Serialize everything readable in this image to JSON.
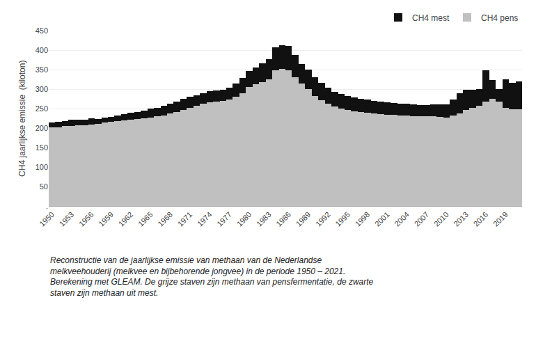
{
  "chart_data": {
    "type": "bar",
    "stacked": true,
    "x": [
      1950,
      1951,
      1952,
      1953,
      1954,
      1955,
      1956,
      1957,
      1958,
      1959,
      1960,
      1961,
      1962,
      1963,
      1964,
      1965,
      1966,
      1967,
      1968,
      1969,
      1970,
      1971,
      1972,
      1973,
      1974,
      1975,
      1976,
      1977,
      1978,
      1979,
      1980,
      1981,
      1982,
      1983,
      1984,
      1985,
      1986,
      1987,
      1988,
      1989,
      1990,
      1991,
      1992,
      1993,
      1994,
      1995,
      1996,
      1997,
      1998,
      1999,
      2000,
      2001,
      2002,
      2003,
      2004,
      2005,
      2006,
      2007,
      2008,
      2009,
      2010,
      2011,
      2012,
      2013,
      2014,
      2015,
      2016,
      2017,
      2018,
      2019,
      2020,
      2021
    ],
    "series": [
      {
        "name": "CH4 pens",
        "color": "#c0c0c0",
        "values": [
          203,
          203,
          205,
          206,
          207,
          208,
          210,
          212,
          214,
          216,
          218,
          220,
          222,
          223,
          225,
          228,
          230,
          233,
          237,
          242,
          247,
          252,
          257,
          262,
          267,
          268,
          270,
          274,
          280,
          290,
          305,
          312,
          318,
          325,
          348,
          352,
          348,
          330,
          315,
          300,
          283,
          272,
          262,
          255,
          250,
          246,
          243,
          241,
          240,
          238,
          236,
          235,
          234,
          233,
          232,
          231,
          230,
          230,
          230,
          229,
          228,
          233,
          238,
          246,
          253,
          258,
          268,
          276,
          268,
          253,
          248,
          248
        ]
      },
      {
        "name": "CH4 mest",
        "color": "#111111",
        "values": [
          12,
          14,
          14,
          16,
          15,
          14,
          16,
          12,
          14,
          13,
          14,
          16,
          17,
          18,
          20,
          22,
          23,
          25,
          26,
          27,
          28,
          28,
          28,
          28,
          28,
          28,
          28,
          30,
          35,
          38,
          42,
          44,
          48,
          52,
          60,
          60,
          62,
          58,
          50,
          50,
          47,
          45,
          42,
          38,
          37,
          36,
          35,
          34,
          33,
          32,
          32,
          31,
          31,
          30,
          30,
          30,
          30,
          30,
          31,
          32,
          33,
          40,
          52,
          52,
          45,
          42,
          80,
          47,
          32,
          72,
          68,
          72
        ]
      }
    ],
    "ylabel": "CH4 jaarlijkse emissie  (kiloton)",
    "xlim": [
      1949.5,
      2021.5
    ],
    "xticks": [
      1950,
      1953,
      1956,
      1959,
      1962,
      1965,
      1968,
      1971,
      1974,
      1977,
      1980,
      1983,
      1986,
      1989,
      1992,
      1995,
      1998,
      2001,
      2004,
      2007,
      2010,
      2013,
      2016,
      2019
    ],
    "ylim": [
      0,
      450
    ],
    "yticks": [
      {
        "value": 0,
        "label": "."
      },
      50,
      100,
      150,
      200,
      250,
      300,
      350,
      400,
      450
    ],
    "grid": "y",
    "legend": "upper right",
    "annotations": [
      "Reconstructie van de jaarlijkse emissie van methaan van de Nederlandse\nmelkveehouderij (melkvee en bijbehorende jongvee) in de periode 1950 – 2021.\nBerekening met GLEAM. De grijze staven zijn methaan van pensfermentatie, de zwarte\nstaven zijn methaan uit mest."
    ]
  }
}
